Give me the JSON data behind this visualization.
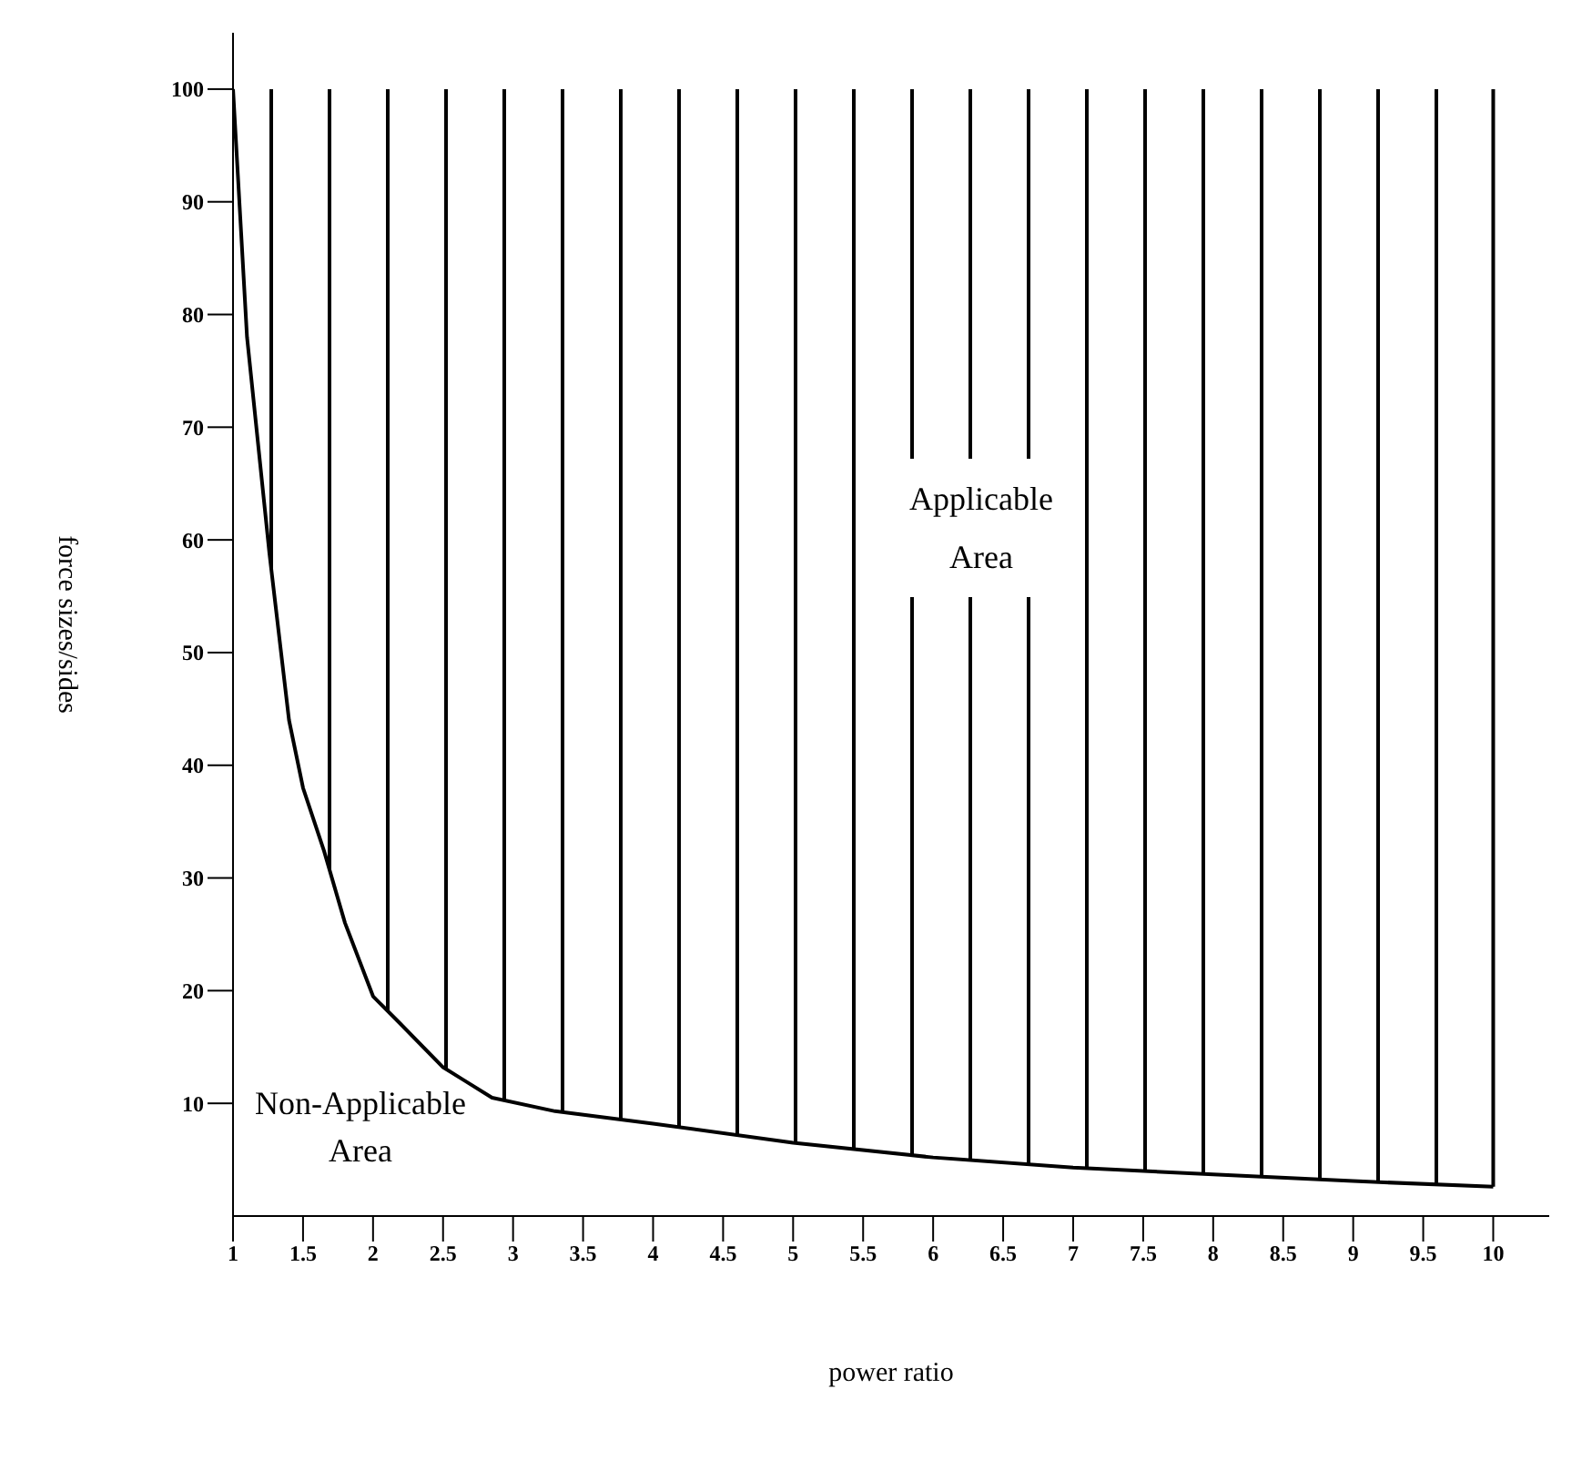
{
  "chart_data": {
    "type": "line",
    "xlabel": "power ratio",
    "ylabel": "force sizes/sides",
    "x": [
      1,
      1.1,
      1.26,
      1.4,
      1.5,
      1.65,
      1.8,
      2,
      2.2,
      2.5,
      2.85,
      3.3,
      4,
      5,
      6,
      7,
      8,
      9,
      10
    ],
    "series": [
      {
        "color": "#000000",
        "values": [
          100,
          78,
          58.8,
          44,
          38,
          32.4,
          26,
          19.5,
          17,
          13.2,
          10.5,
          9.3,
          8.2,
          6.5,
          5.2,
          4.3,
          3.7,
          3.1,
          2.6
        ]
      }
    ],
    "xlim": [
      1,
      10.4
    ],
    "xticks": [
      1,
      1.5,
      2,
      2.5,
      3,
      3.5,
      4,
      4.5,
      5,
      5.5,
      6,
      6.5,
      7,
      7.5,
      8,
      8.5,
      9,
      9.5,
      10
    ],
    "ylim": [
      0,
      105
    ],
    "yticks": [
      10,
      20,
      30,
      40,
      50,
      60,
      70,
      80,
      90,
      100
    ],
    "annotations": [
      "Applicable Area",
      "Non-Applicable Area"
    ]
  }
}
